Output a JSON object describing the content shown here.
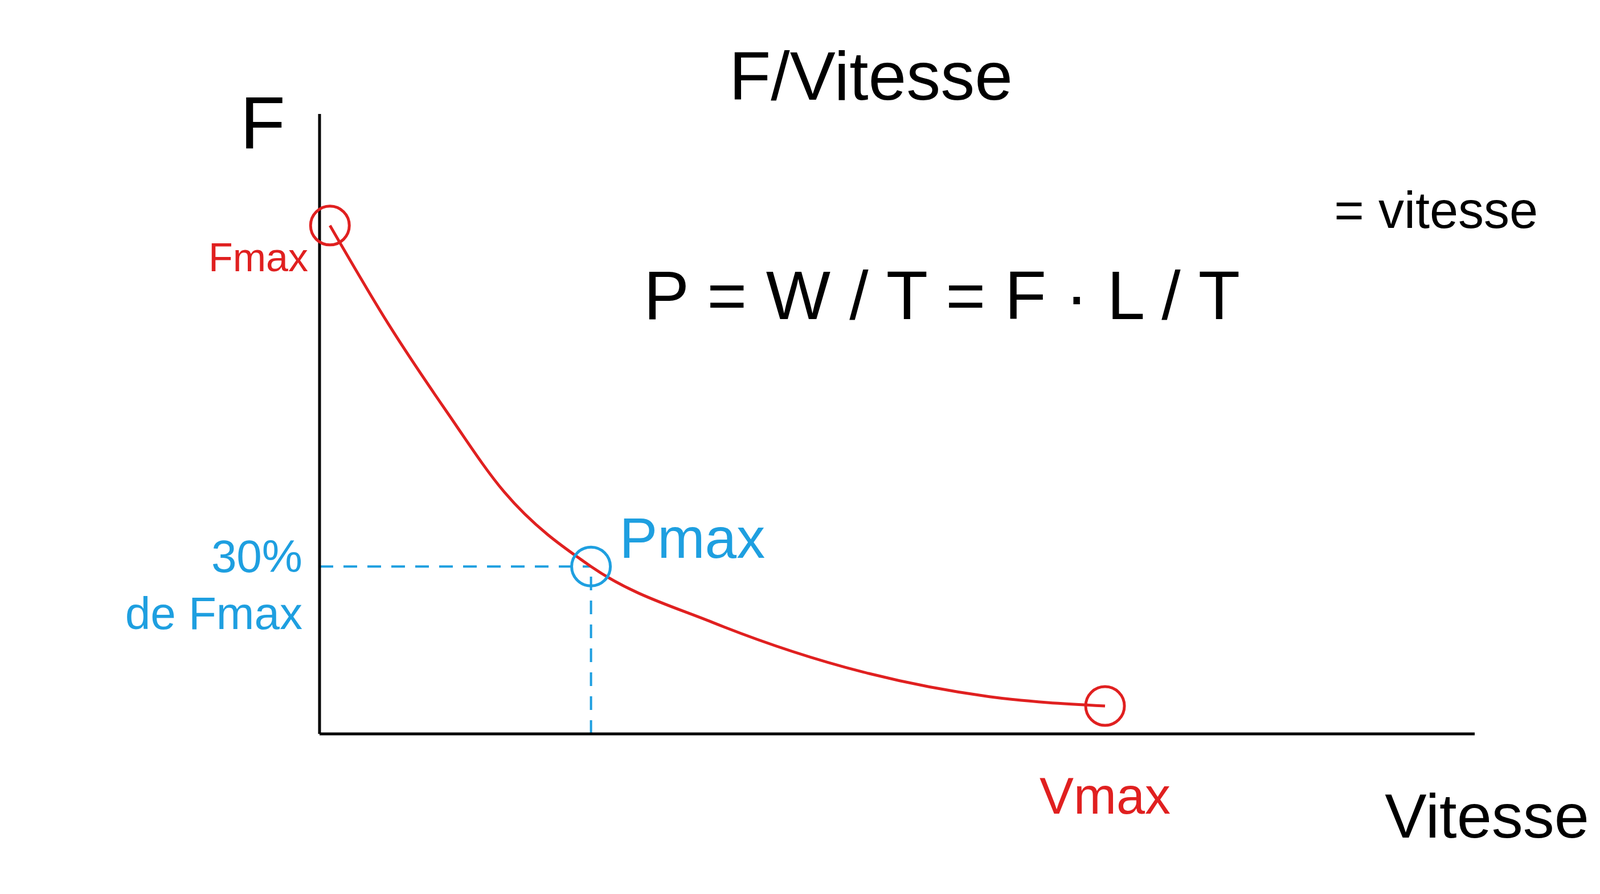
{
  "chart_data": {
    "type": "line",
    "title": "F/Vitesse",
    "x_label": "Vitesse",
    "y_label": "F",
    "formula": "P = W / T = F · L / T",
    "formula_note": "= vitesse",
    "x": [
      0.9,
      6,
      11,
      16,
      23.5,
      34,
      47,
      58,
      68
    ],
    "values": [
      82,
      66,
      52,
      39,
      27,
      18,
      10,
      6,
      4.5
    ],
    "color": "#e02020",
    "xlim": [
      0,
      100
    ],
    "ylim": [
      0,
      100
    ],
    "tick_labels": false,
    "grid": false,
    "points": [
      {
        "label": "Fmax",
        "x": 0.9,
        "y": 82,
        "color": "#e02020"
      },
      {
        "label": "Pmax",
        "x": 23.5,
        "y": 27,
        "color": "#1e9fe0"
      },
      {
        "label": "Vmax",
        "x": 68,
        "y": 4.5,
        "color": "#e02020"
      }
    ],
    "y_mark_label": "30% de Fmax"
  }
}
